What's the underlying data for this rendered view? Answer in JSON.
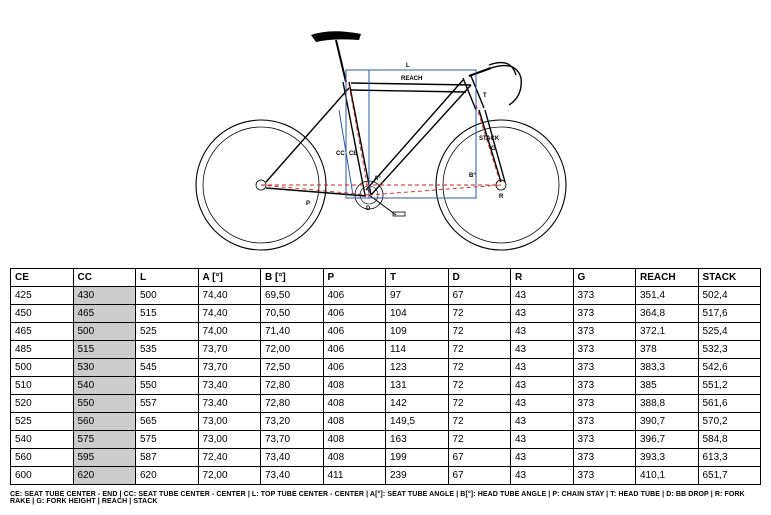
{
  "diagram": {
    "labels": {
      "L": "L",
      "REACH": "REACH",
      "STACK": "STACK",
      "CE": "CE",
      "CC": "CC",
      "A": "A°",
      "B": "B°",
      "P": "P",
      "T": "T",
      "D": "D",
      "R": "R",
      "G": "G"
    },
    "colors": {
      "frame_stroke": "#000000",
      "guide_blue": "#2e5aa8",
      "guide_red_dash": "#d02020",
      "background": "#ffffff"
    },
    "stroke_width": 1.1
  },
  "table": {
    "columns": [
      "CE",
      "CC",
      "L",
      "A [°]",
      "B [°]",
      "P",
      "T",
      "D",
      "R",
      "G",
      "REACH",
      "STACK"
    ],
    "highlight_col": 1,
    "rows": [
      [
        "425",
        "430",
        "500",
        "74,40",
        "69,50",
        "406",
        "97",
        "67",
        "43",
        "373",
        "351,4",
        "502,4"
      ],
      [
        "450",
        "465",
        "515",
        "74,40",
        "70,50",
        "406",
        "104",
        "72",
        "43",
        "373",
        "364,8",
        "517,6"
      ],
      [
        "465",
        "500",
        "525",
        "74,00",
        "71,40",
        "406",
        "109",
        "72",
        "43",
        "373",
        "372,1",
        "525,4"
      ],
      [
        "485",
        "515",
        "535",
        "73,70",
        "72,00",
        "406",
        "114",
        "72",
        "43",
        "373",
        "378",
        "532,3"
      ],
      [
        "500",
        "530",
        "545",
        "73,70",
        "72,50",
        "406",
        "123",
        "72",
        "43",
        "373",
        "383,3",
        "542,6"
      ],
      [
        "510",
        "540",
        "550",
        "73,40",
        "72,80",
        "408",
        "131",
        "72",
        "43",
        "373",
        "385",
        "551,2"
      ],
      [
        "520",
        "550",
        "557",
        "73,40",
        "72,80",
        "408",
        "142",
        "72",
        "43",
        "373",
        "388,8",
        "561,6"
      ],
      [
        "525",
        "560",
        "565",
        "73,00",
        "73,20",
        "408",
        "149,5",
        "72",
        "43",
        "373",
        "390,7",
        "570,2"
      ],
      [
        "540",
        "575",
        "575",
        "73,00",
        "73,70",
        "408",
        "163",
        "72",
        "43",
        "373",
        "396,7",
        "584,8"
      ],
      [
        "560",
        "595",
        "587",
        "72,40",
        "73,40",
        "408",
        "199",
        "67",
        "43",
        "373",
        "393,3",
        "613,3"
      ],
      [
        "600",
        "620",
        "620",
        "72,00",
        "73,40",
        "411",
        "239",
        "67",
        "43",
        "373",
        "410,1",
        "651,7"
      ]
    ]
  },
  "legend": "CE: SEAT TUBE CENTER - END  |  CC: SEAT TUBE CENTER - CENTER  |  L: TOP TUBE CENTER - CENTER  |  A[°]: SEAT TUBE ANGLE  |  B[°]: HEAD TUBE ANGLE  |  P: CHAIN STAY  |  T: HEAD TUBE  |  D: BB DROP  |  R: FORK RAKE  |  G: FORK HEIGHT  |  REACH  |  STACK"
}
